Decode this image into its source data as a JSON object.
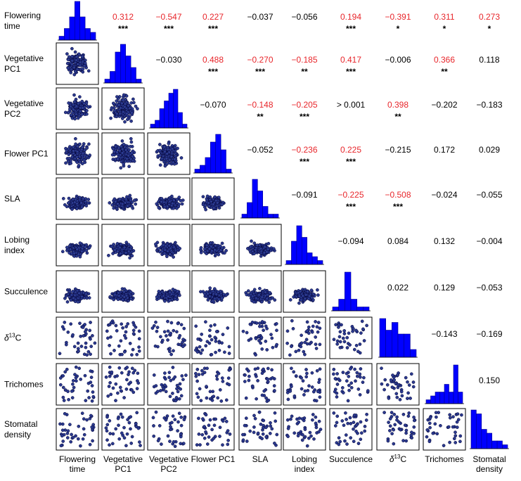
{
  "chart_data": {
    "type": "scatter",
    "variables": [
      {
        "row_label": [
          "Flowering",
          "time"
        ],
        "col_label": [
          "Flowering",
          "time"
        ]
      },
      {
        "row_label": [
          "Vegetative",
          "PC1"
        ],
        "col_label": [
          "Vegetative",
          "PC1"
        ]
      },
      {
        "row_label": [
          "Vegetative",
          "PC2"
        ],
        "col_label": [
          "Vegetative",
          "PC2"
        ]
      },
      {
        "row_label": [
          "Flower PC1"
        ],
        "col_label": [
          "Flower PC1"
        ]
      },
      {
        "row_label": [
          "SLA"
        ],
        "col_label": [
          "SLA"
        ]
      },
      {
        "row_label": [
          "Lobing",
          "index"
        ],
        "col_label": [
          "Lobing",
          "index"
        ]
      },
      {
        "row_label": [
          "Succulence"
        ],
        "col_label": [
          "Succulence"
        ]
      },
      {
        "row_label": [
          "δ13C"
        ],
        "col_label": [
          "δ13C"
        ]
      },
      {
        "row_label": [
          "Trichomes"
        ],
        "col_label": [
          "Trichomes"
        ]
      },
      {
        "row_label": [
          "Stomatal",
          "density"
        ],
        "col_label": [
          "Stomatal",
          "density"
        ]
      }
    ],
    "correlations": [
      {
        "row": 0,
        "col": 1,
        "value": "0.312",
        "stars": "***",
        "significant": true
      },
      {
        "row": 0,
        "col": 2,
        "value": "−0.547",
        "stars": "***",
        "significant": true
      },
      {
        "row": 0,
        "col": 3,
        "value": "0.227",
        "stars": "***",
        "significant": true
      },
      {
        "row": 0,
        "col": 4,
        "value": "−0.037",
        "stars": "",
        "significant": false
      },
      {
        "row": 0,
        "col": 5,
        "value": "−0.056",
        "stars": "",
        "significant": false
      },
      {
        "row": 0,
        "col": 6,
        "value": "0.194",
        "stars": "***",
        "significant": true
      },
      {
        "row": 0,
        "col": 7,
        "value": "−0.391",
        "stars": "*",
        "significant": true
      },
      {
        "row": 0,
        "col": 8,
        "value": "0.311",
        "stars": "*",
        "significant": true
      },
      {
        "row": 0,
        "col": 9,
        "value": "0.273",
        "stars": "*",
        "significant": true
      },
      {
        "row": 1,
        "col": 2,
        "value": "−0.030",
        "stars": "",
        "significant": false
      },
      {
        "row": 1,
        "col": 3,
        "value": "0.488",
        "stars": "***",
        "significant": true
      },
      {
        "row": 1,
        "col": 4,
        "value": "−0.270",
        "stars": "***",
        "significant": true
      },
      {
        "row": 1,
        "col": 5,
        "value": "−0.185",
        "stars": "**",
        "significant": true
      },
      {
        "row": 1,
        "col": 6,
        "value": "0.417",
        "stars": "***",
        "significant": true
      },
      {
        "row": 1,
        "col": 7,
        "value": "−0.006",
        "stars": "",
        "significant": false
      },
      {
        "row": 1,
        "col": 8,
        "value": "0.366",
        "stars": "**",
        "significant": true
      },
      {
        "row": 1,
        "col": 9,
        "value": "0.118",
        "stars": "",
        "significant": false
      },
      {
        "row": 2,
        "col": 3,
        "value": "−0.070",
        "stars": "",
        "significant": false
      },
      {
        "row": 2,
        "col": 4,
        "value": "−0.148",
        "stars": "**",
        "significant": true
      },
      {
        "row": 2,
        "col": 5,
        "value": "−0.205",
        "stars": "***",
        "significant": true
      },
      {
        "row": 2,
        "col": 6,
        "value": "> 0.001",
        "stars": "",
        "significant": false
      },
      {
        "row": 2,
        "col": 7,
        "value": "0.398",
        "stars": "**",
        "significant": true
      },
      {
        "row": 2,
        "col": 8,
        "value": "−0.202",
        "stars": "",
        "significant": false
      },
      {
        "row": 2,
        "col": 9,
        "value": "−0.183",
        "stars": "",
        "significant": false
      },
      {
        "row": 3,
        "col": 4,
        "value": "−0.052",
        "stars": "",
        "significant": false
      },
      {
        "row": 3,
        "col": 5,
        "value": "−0.236",
        "stars": "***",
        "significant": true
      },
      {
        "row": 3,
        "col": 6,
        "value": "0.225",
        "stars": "***",
        "significant": true
      },
      {
        "row": 3,
        "col": 7,
        "value": "−0.215",
        "stars": "",
        "significant": false
      },
      {
        "row": 3,
        "col": 8,
        "value": "0.172",
        "stars": "",
        "significant": false
      },
      {
        "row": 3,
        "col": 9,
        "value": "0.029",
        "stars": "",
        "significant": false
      },
      {
        "row": 4,
        "col": 5,
        "value": "−0.091",
        "stars": "",
        "significant": false
      },
      {
        "row": 4,
        "col": 6,
        "value": "−0.225",
        "stars": "***",
        "significant": true
      },
      {
        "row": 4,
        "col": 7,
        "value": "−0.508",
        "stars": "***",
        "significant": true
      },
      {
        "row": 4,
        "col": 8,
        "value": "−0.024",
        "stars": "",
        "significant": false
      },
      {
        "row": 4,
        "col": 9,
        "value": "−0.055",
        "stars": "",
        "significant": false
      },
      {
        "row": 5,
        "col": 6,
        "value": "−0.094",
        "stars": "",
        "significant": false
      },
      {
        "row": 5,
        "col": 7,
        "value": "0.084",
        "stars": "",
        "significant": false
      },
      {
        "row": 5,
        "col": 8,
        "value": "0.132",
        "stars": "",
        "significant": false
      },
      {
        "row": 5,
        "col": 9,
        "value": "−0.004",
        "stars": "",
        "significant": false
      },
      {
        "row": 6,
        "col": 7,
        "value": "0.022",
        "stars": "",
        "significant": false
      },
      {
        "row": 6,
        "col": 8,
        "value": "0.129",
        "stars": "",
        "significant": false
      },
      {
        "row": 6,
        "col": 9,
        "value": "−0.053",
        "stars": "",
        "significant": false
      },
      {
        "row": 7,
        "col": 8,
        "value": "−0.143",
        "stars": "",
        "significant": false
      },
      {
        "row": 7,
        "col": 9,
        "value": "−0.169",
        "stars": "",
        "significant": false
      },
      {
        "row": 8,
        "col": 9,
        "value": "0.150",
        "stars": "",
        "significant": false
      }
    ],
    "histograms": [
      [
        1,
        3,
        6,
        10,
        6,
        3,
        2
      ],
      [
        1,
        3,
        8,
        10,
        7,
        4,
        1
      ],
      [
        1,
        2,
        5,
        7,
        9,
        10,
        4,
        1
      ],
      [
        1,
        2,
        4,
        8,
        10,
        6,
        1
      ],
      [
        1,
        4,
        10,
        7,
        3,
        1,
        1
      ],
      [
        1,
        6,
        10,
        7,
        3,
        2,
        1
      ],
      [
        1,
        3,
        10,
        3,
        1,
        1
      ],
      [
        10,
        7,
        9,
        6,
        6,
        2
      ],
      [
        1,
        2,
        3,
        3,
        5,
        3,
        10,
        3
      ],
      [
        10,
        9,
        5,
        4,
        2,
        2,
        1
      ]
    ],
    "colors": {
      "point_fill": "#2b3a8f",
      "point_stroke": "#000033",
      "hist_fill": "#0000ff",
      "significant_text": "#e8262b",
      "nonsignificant_text": "#000000",
      "panel_border": "#000000"
    },
    "grid": false
  }
}
